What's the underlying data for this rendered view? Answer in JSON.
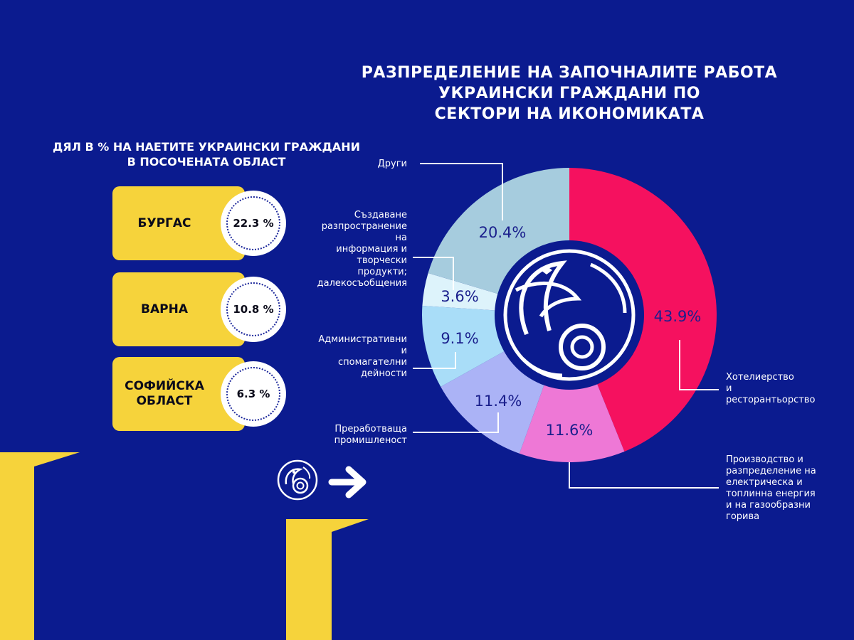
{
  "chart_title_lines": [
    "РАЗПРЕДЕЛЕНИЕ НА ЗАПОЧНАЛИТЕ РАБОТА",
    "УКРАИНСКИ ГРАЖДАНИ ПО",
    "СЕКТОРИ НА ИКОНОМИКАТА"
  ],
  "regions_heading_lines": [
    "ДЯЛ В % НА НАЕТИТЕ УКРАИНСКИ ГРАЖДАНИ",
    "В ПОСОЧЕНАТА ОБЛАСТ"
  ],
  "regions": [
    {
      "name": "БУРГАС",
      "value_label": "22.3 %",
      "value": 22.3
    },
    {
      "name": "ВАРНА",
      "value_label": "10.8 %",
      "value": 10.8
    },
    {
      "name": "СОФИЙСКА\nОБЛАСТ",
      "value_label": "6.3 %",
      "value": 6.3
    }
  ],
  "icons": {
    "logo": "fish-circle-logo-icon",
    "arrow": "arrow-right-icon"
  },
  "colors": {
    "background": "#0b1b8f",
    "accent_yellow": "#f6d33b",
    "label_blue": "#1a1f8c"
  },
  "chart_data": {
    "type": "pie",
    "title": "РАЗПРЕДЕЛЕНИЕ НА ЗАПОЧНАЛИТЕ РАБОТА УКРАИНСКИ ГРАЖДАНИ ПО СЕКТОРИ НА ИКОНОМИКАТА",
    "donut": true,
    "slices": [
      {
        "label_lines": [
          "Хотелиерство",
          "и",
          "ресторантьорство"
        ],
        "value": 43.9,
        "value_label": "43.9%",
        "color": "#f5115f"
      },
      {
        "label_lines": [
          "Производство и",
          "разпределение на",
          "електрическа и",
          "топлинна енергия",
          "и на газообразни",
          "горива"
        ],
        "value": 11.6,
        "value_label": "11.6%",
        "color": "#ee78d6"
      },
      {
        "label_lines": [
          "Преработваща",
          "промишленост"
        ],
        "value": 11.4,
        "value_label": "11.4%",
        "color": "#abb3f6"
      },
      {
        "label_lines": [
          "Административни",
          "и",
          "спомагателни",
          "дейности"
        ],
        "value": 9.1,
        "value_label": "9.1%",
        "color": "#a9ddf8"
      },
      {
        "label_lines": [
          "Създаване",
          "разпространение",
          "на",
          "информация и",
          "творчески",
          "продукти;",
          "далекосъобщения"
        ],
        "value": 3.6,
        "value_label": "3.6%",
        "color": "#ddf3fb"
      },
      {
        "label_lines": [
          "Други"
        ],
        "value": 20.4,
        "value_label": "20.4%",
        "color": "#a6ccde"
      }
    ]
  }
}
